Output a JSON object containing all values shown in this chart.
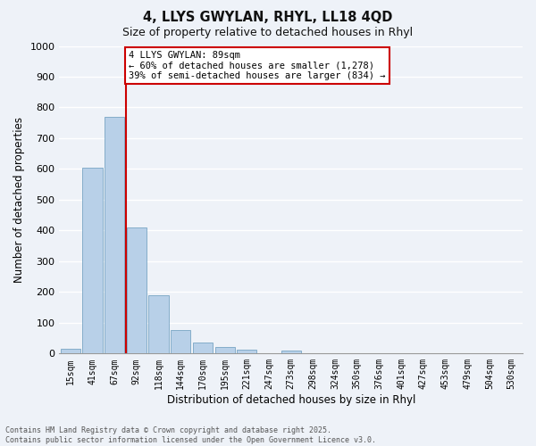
{
  "title_line1": "4, LLYS GWYLAN, RHYL, LL18 4QD",
  "title_line2": "Size of property relative to detached houses in Rhyl",
  "xlabel": "Distribution of detached houses by size in Rhyl",
  "ylabel": "Number of detached properties",
  "bar_categories": [
    "15sqm",
    "41sqm",
    "67sqm",
    "92sqm",
    "118sqm",
    "144sqm",
    "170sqm",
    "195sqm",
    "221sqm",
    "247sqm",
    "273sqm",
    "298sqm",
    "324sqm",
    "350sqm",
    "376sqm",
    "401sqm",
    "427sqm",
    "453sqm",
    "479sqm",
    "504sqm",
    "530sqm"
  ],
  "bar_values": [
    15,
    605,
    770,
    410,
    190,
    75,
    35,
    20,
    12,
    0,
    10,
    0,
    0,
    0,
    0,
    0,
    0,
    0,
    0,
    0,
    0
  ],
  "bar_color": "#b8d0e8",
  "bar_edge_color": "#6699bb",
  "background_color": "#eef2f8",
  "grid_color": "#ffffff",
  "ylim": [
    0,
    1000
  ],
  "yticks": [
    0,
    100,
    200,
    300,
    400,
    500,
    600,
    700,
    800,
    900,
    1000
  ],
  "vline_index": 2.5,
  "vline_color": "#cc0000",
  "annotation_text": "4 LLYS GWYLAN: 89sqm\n← 60% of detached houses are smaller (1,278)\n39% of semi-detached houses are larger (834) →",
  "annotation_box_color": "#cc0000",
  "title_fontsize": 10.5,
  "subtitle_fontsize": 9,
  "ylabel_text": "Number of detached properties",
  "footer_line1": "Contains HM Land Registry data © Crown copyright and database right 2025.",
  "footer_line2": "Contains public sector information licensed under the Open Government Licence v3.0."
}
